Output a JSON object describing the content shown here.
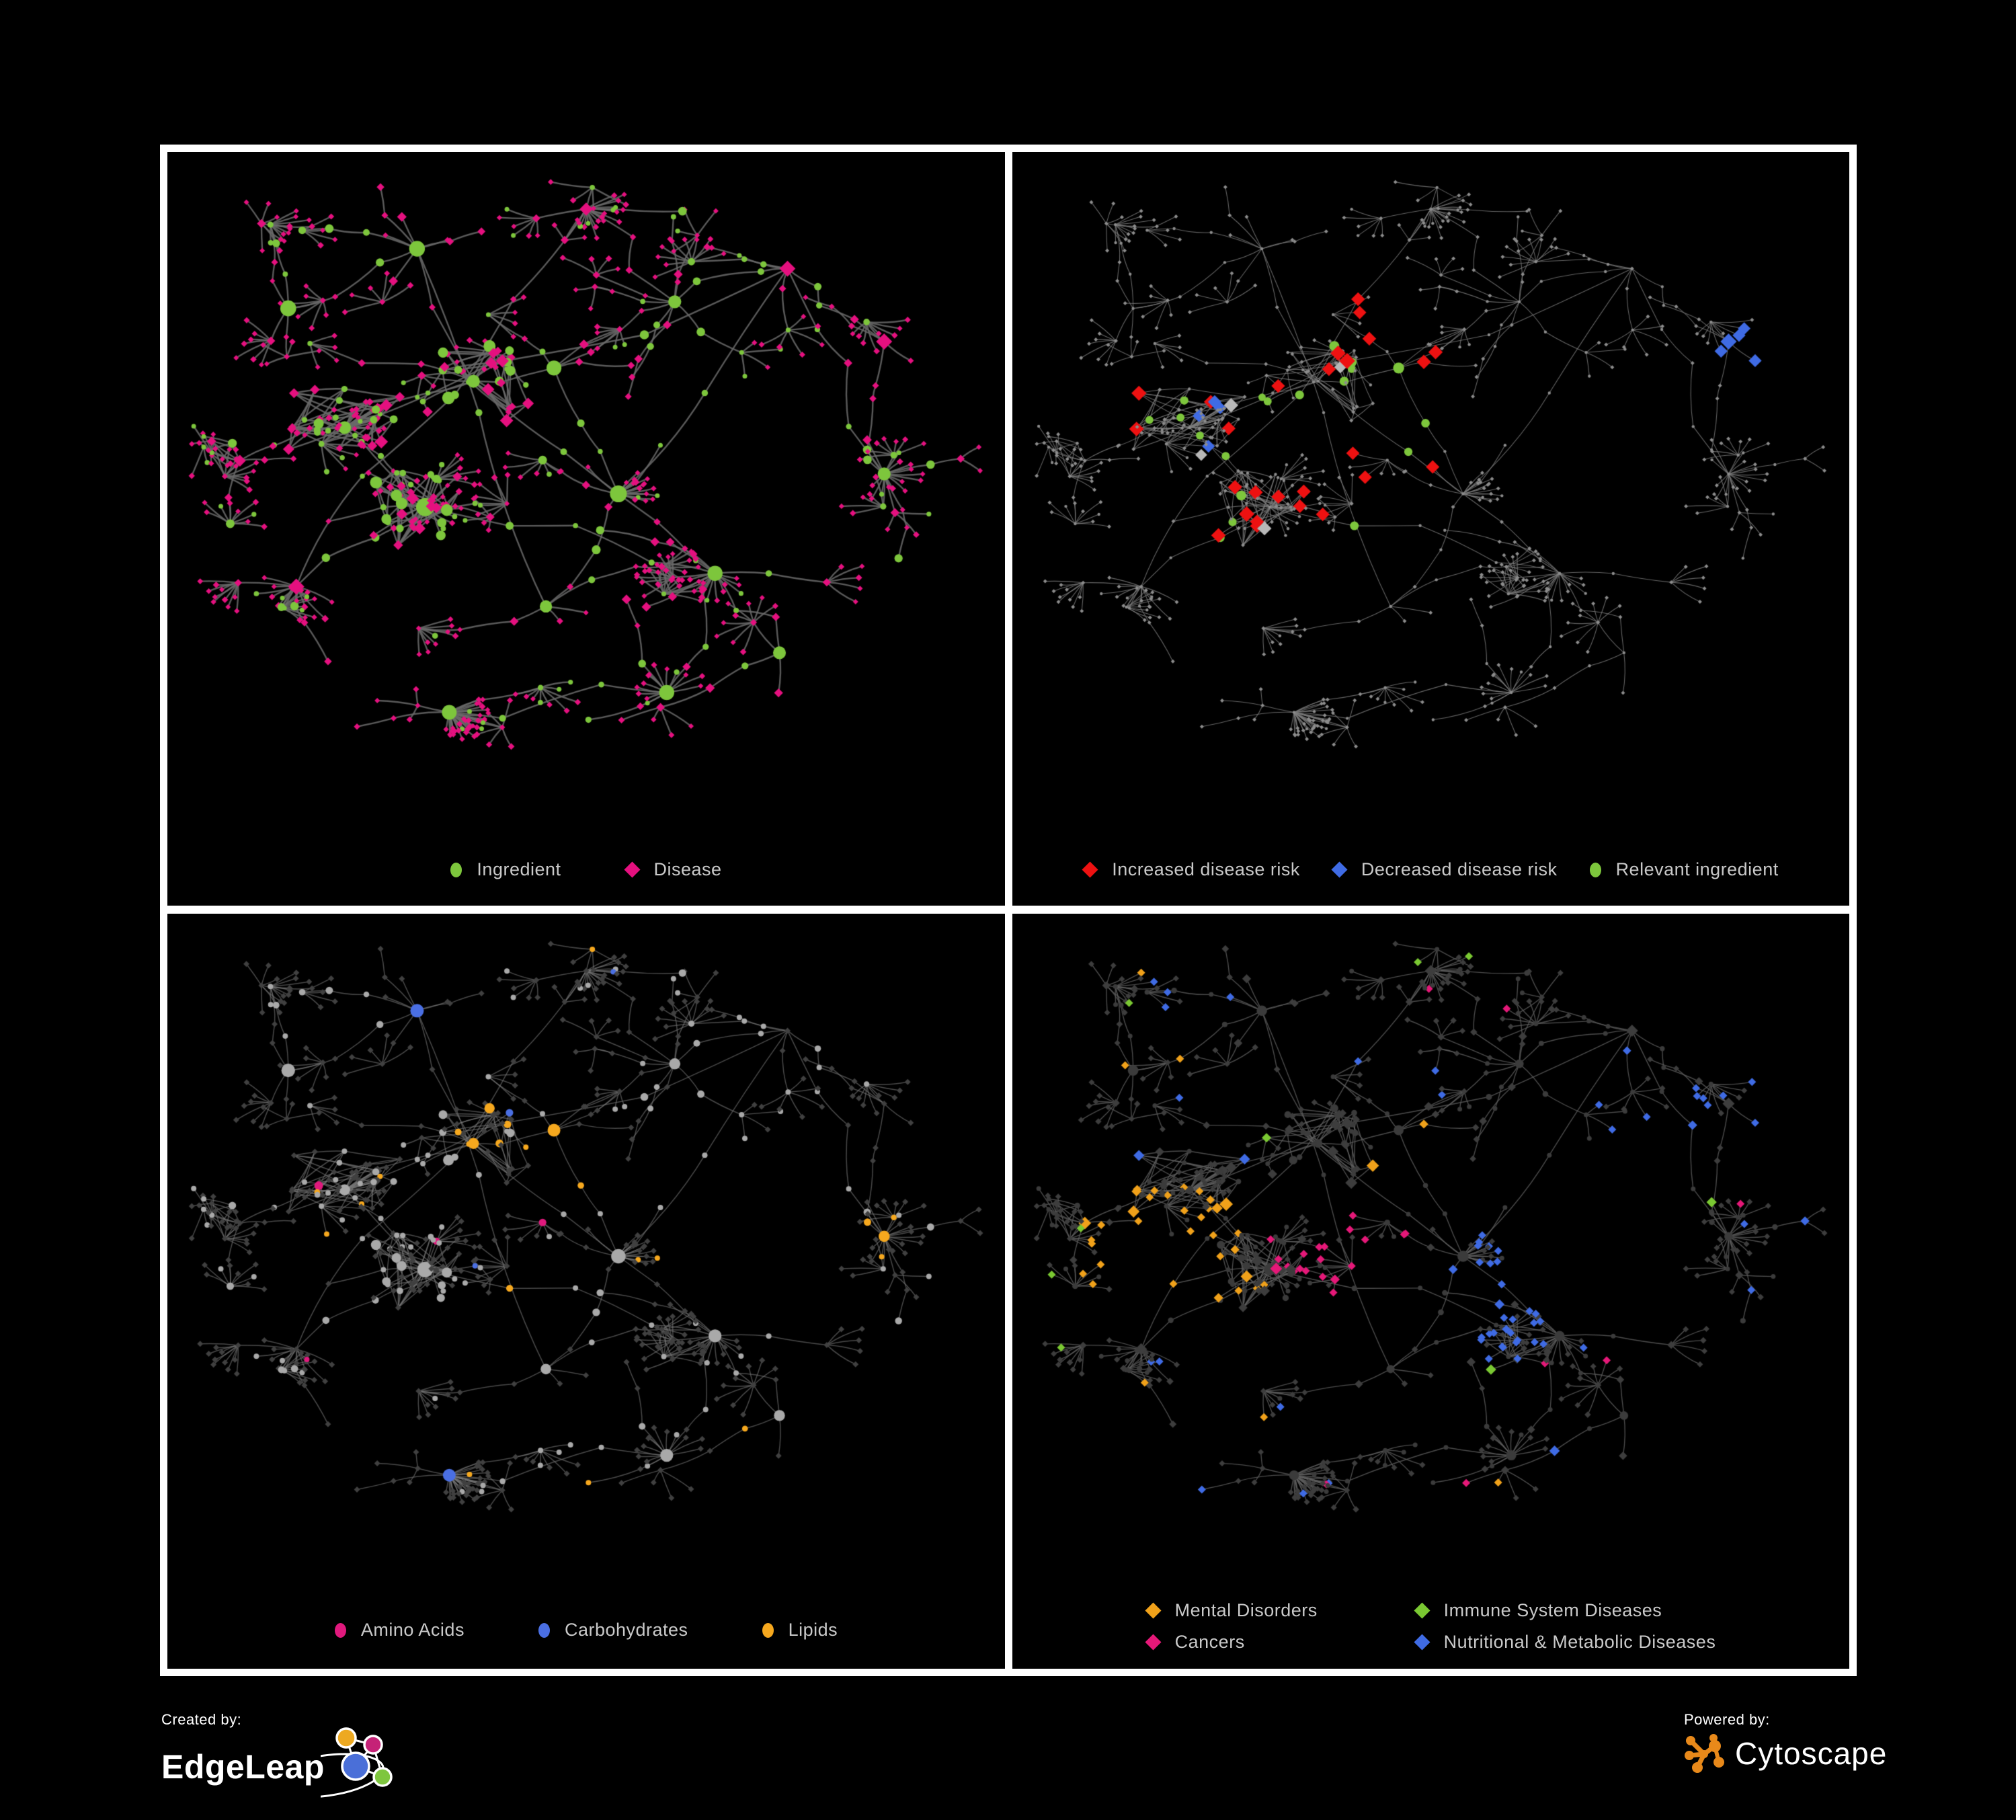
{
  "page": {
    "background": "#000000",
    "panel_border": "#ffffff",
    "legend_text_color": "#c9c9c9"
  },
  "panels": [
    {
      "id": "ingredient-disease-network",
      "legend": [
        {
          "label": "Ingredient",
          "shape": "ellipse",
          "color": "#7dc63c"
        },
        {
          "label": "Disease",
          "shape": "diamond",
          "color": "#e5107f"
        }
      ],
      "style": {
        "edgeColor": "#6a6a6a",
        "edgeWidth": 2.4,
        "edgeAlpha": 0.85,
        "ingredientColor": "#7dc63c",
        "diseaseColor": "#e5107f"
      }
    },
    {
      "id": "disease-risk-network",
      "legend": [
        {
          "label": "Increased disease risk",
          "shape": "diamond",
          "color": "#ee1111"
        },
        {
          "label": "Decreased disease risk",
          "shape": "diamond",
          "color": "#3f6be4"
        },
        {
          "label": "Relevant ingredient",
          "shape": "ellipse",
          "color": "#7dc63c"
        }
      ],
      "style": {
        "edgeColor": "#7d7d7d",
        "edgeWidth": 1.1,
        "edgeAlpha": 0.8,
        "dotColor": "#8c8c8c",
        "increasedColor": "#ee1111",
        "decreasedColor": "#3f6be4",
        "neutralColor": "#b8b8b8",
        "relevantColor": "#7dc63c"
      }
    },
    {
      "id": "nutrient-class-network",
      "legend": [
        {
          "label": "Amino Acids",
          "shape": "ellipse",
          "color": "#e0197d"
        },
        {
          "label": "Carbohydrates",
          "shape": "ellipse",
          "color": "#4a6fe3"
        },
        {
          "label": "Lipids",
          "shape": "ellipse",
          "color": "#f6a81e"
        }
      ],
      "style": {
        "edgeColor": "#7a7a7a",
        "edgeWidth": 1.5,
        "edgeAlpha": 0.6,
        "otherIngredientColor": "#a9a9a9",
        "diseaseColor": "#404040",
        "aminoColor": "#e0197d",
        "carbColor": "#4a6fe3",
        "lipidColor": "#f6a81e"
      }
    },
    {
      "id": "disease-class-network",
      "legend": [
        {
          "label": "Mental Disorders",
          "shape": "diamond",
          "color": "#f0a11a"
        },
        {
          "label": "Immune System Diseases",
          "shape": "diamond",
          "color": "#7ac832"
        },
        {
          "label": "Cancers",
          "shape": "diamond",
          "color": "#e51878"
        },
        {
          "label": "Nutritional & Metabolic Diseases",
          "shape": "diamond",
          "color": "#3f6be4"
        }
      ],
      "style": {
        "edgeColor": "#5f5f5f",
        "edgeWidth": 1.4,
        "edgeAlpha": 0.8,
        "ingredientColor": "#3b3b3b",
        "otherDiseaseColor": "#3d3d3d",
        "mentalColor": "#f0a11a",
        "immuneColor": "#7ac832",
        "cancerColor": "#e51878",
        "nutritionalColor": "#3f6be4"
      }
    }
  ],
  "footer": {
    "created_by_label": "Created by:",
    "edgeleap_name": "EdgeLeap",
    "powered_by_label": "Powered by:",
    "cytoscape_name": "Cytoscape",
    "cytoscape_orange": "#e8891a",
    "edgeleap_node_colors": {
      "yellow": "#eda921",
      "magenta": "#c52277",
      "blue": "#4a6fd8",
      "green": "#7ec63e"
    }
  },
  "network": {
    "seed": 1337,
    "hubs": [
      [
        0.2,
        0.4
      ],
      [
        0.36,
        0.33
      ],
      [
        0.3,
        0.52
      ],
      [
        0.46,
        0.31
      ],
      [
        0.29,
        0.13
      ],
      [
        0.13,
        0.22
      ],
      [
        0.54,
        0.5
      ],
      [
        0.66,
        0.62
      ],
      [
        0.61,
        0.21
      ],
      [
        0.75,
        0.16
      ],
      [
        0.87,
        0.27
      ],
      [
        0.87,
        0.47
      ],
      [
        0.6,
        0.8
      ],
      [
        0.33,
        0.83
      ],
      [
        0.14,
        0.64
      ],
      [
        0.45,
        0.67
      ],
      [
        0.74,
        0.74
      ],
      [
        0.5,
        0.07
      ],
      [
        0.07,
        0.45
      ]
    ]
  }
}
